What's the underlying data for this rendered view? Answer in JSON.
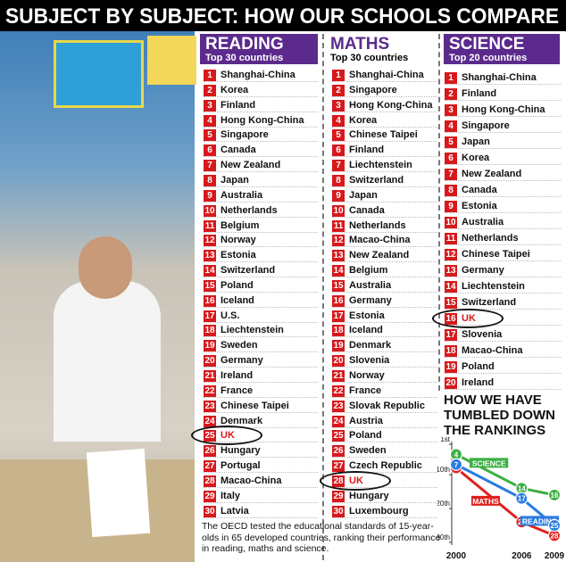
{
  "title": "SUBJECT BY SUBJECT: HOW OUR SCHOOLS COMPARE",
  "columns": [
    {
      "heading": "READING",
      "subheading": "Top 30 countries",
      "rows": [
        {
          "rank": 1,
          "country": "Shanghai-China"
        },
        {
          "rank": 2,
          "country": "Korea"
        },
        {
          "rank": 3,
          "country": "Finland"
        },
        {
          "rank": 4,
          "country": "Hong Kong-China"
        },
        {
          "rank": 5,
          "country": "Singapore"
        },
        {
          "rank": 6,
          "country": "Canada"
        },
        {
          "rank": 7,
          "country": "New Zealand"
        },
        {
          "rank": 8,
          "country": "Japan"
        },
        {
          "rank": 9,
          "country": "Australia"
        },
        {
          "rank": 10,
          "country": "Netherlands"
        },
        {
          "rank": 11,
          "country": "Belgium"
        },
        {
          "rank": 12,
          "country": "Norway"
        },
        {
          "rank": 13,
          "country": "Estonia"
        },
        {
          "rank": 14,
          "country": "Switzerland"
        },
        {
          "rank": 15,
          "country": "Poland"
        },
        {
          "rank": 16,
          "country": "Iceland"
        },
        {
          "rank": 17,
          "country": "U.S."
        },
        {
          "rank": 18,
          "country": "Liechtenstein"
        },
        {
          "rank": 19,
          "country": "Sweden"
        },
        {
          "rank": 20,
          "country": "Germany"
        },
        {
          "rank": 21,
          "country": "Ireland"
        },
        {
          "rank": 22,
          "country": "France"
        },
        {
          "rank": 23,
          "country": "Chinese Taipei"
        },
        {
          "rank": 24,
          "country": "Denmark"
        },
        {
          "rank": 25,
          "country": "UK",
          "highlighted": true
        },
        {
          "rank": 26,
          "country": "Hungary"
        },
        {
          "rank": 27,
          "country": "Portugal"
        },
        {
          "rank": 28,
          "country": "Macao-China"
        },
        {
          "rank": 29,
          "country": "Italy"
        },
        {
          "rank": 30,
          "country": "Latvia"
        }
      ]
    },
    {
      "heading": "MATHS",
      "subheading": "Top 30 countries",
      "rows": [
        {
          "rank": 1,
          "country": "Shanghai-China"
        },
        {
          "rank": 2,
          "country": "Singapore"
        },
        {
          "rank": 3,
          "country": "Hong Kong-China"
        },
        {
          "rank": 4,
          "country": "Korea"
        },
        {
          "rank": 5,
          "country": "Chinese Taipei"
        },
        {
          "rank": 6,
          "country": "Finland"
        },
        {
          "rank": 7,
          "country": "Liechtenstein"
        },
        {
          "rank": 8,
          "country": "Switzerland"
        },
        {
          "rank": 9,
          "country": "Japan"
        },
        {
          "rank": 10,
          "country": "Canada"
        },
        {
          "rank": 11,
          "country": "Netherlands"
        },
        {
          "rank": 12,
          "country": "Macao-China"
        },
        {
          "rank": 13,
          "country": "New Zealand"
        },
        {
          "rank": 14,
          "country": "Belgium"
        },
        {
          "rank": 15,
          "country": "Australia"
        },
        {
          "rank": 16,
          "country": "Germany"
        },
        {
          "rank": 17,
          "country": "Estonia"
        },
        {
          "rank": 18,
          "country": "Iceland"
        },
        {
          "rank": 19,
          "country": "Denmark"
        },
        {
          "rank": 20,
          "country": "Slovenia"
        },
        {
          "rank": 21,
          "country": "Norway"
        },
        {
          "rank": 22,
          "country": "France"
        },
        {
          "rank": 23,
          "country": "Slovak Republic"
        },
        {
          "rank": 24,
          "country": "Austria"
        },
        {
          "rank": 25,
          "country": "Poland"
        },
        {
          "rank": 26,
          "country": "Sweden"
        },
        {
          "rank": 27,
          "country": "Czech Republic"
        },
        {
          "rank": 28,
          "country": "UK",
          "highlighted": true
        },
        {
          "rank": 29,
          "country": "Hungary"
        },
        {
          "rank": 30,
          "country": "Luxembourg"
        }
      ]
    },
    {
      "heading": "SCIENCE",
      "subheading": "Top 20 countries",
      "rows": [
        {
          "rank": 1,
          "country": "Shanghai-China"
        },
        {
          "rank": 2,
          "country": "Finland"
        },
        {
          "rank": 3,
          "country": "Hong Kong-China"
        },
        {
          "rank": 4,
          "country": "Singapore"
        },
        {
          "rank": 5,
          "country": "Japan"
        },
        {
          "rank": 6,
          "country": "Korea"
        },
        {
          "rank": 7,
          "country": "New Zealand"
        },
        {
          "rank": 8,
          "country": "Canada"
        },
        {
          "rank": 9,
          "country": "Estonia"
        },
        {
          "rank": 10,
          "country": "Australia"
        },
        {
          "rank": 11,
          "country": "Netherlands"
        },
        {
          "rank": 12,
          "country": "Chinese Taipei"
        },
        {
          "rank": 13,
          "country": "Germany"
        },
        {
          "rank": 14,
          "country": "Liechtenstein"
        },
        {
          "rank": 15,
          "country": "Switzerland"
        },
        {
          "rank": 16,
          "country": "UK",
          "highlighted": true
        },
        {
          "rank": 17,
          "country": "Slovenia"
        },
        {
          "rank": 18,
          "country": "Macao-China"
        },
        {
          "rank": 19,
          "country": "Poland"
        },
        {
          "rank": 20,
          "country": "Ireland"
        }
      ]
    }
  ],
  "footnote": "The OECD tested the educational standards of 15-year-olds in 65 developed countries, ranking their performance in reading, maths and science.",
  "chart_data": {
    "type": "line",
    "title": "HOW WE HAVE TUMBLED DOWN THE RANKINGS",
    "x": [
      2000,
      2006,
      2009
    ],
    "xlim": [
      2000,
      2009
    ],
    "xticks": [
      2000,
      2006,
      2009
    ],
    "ylim": [
      1,
      30
    ],
    "y_inverted": true,
    "yticks": [
      {
        "value": 1,
        "label": "1st"
      },
      {
        "value": 10,
        "label": "10th"
      },
      {
        "value": 20,
        "label": "20th"
      },
      {
        "value": 30,
        "label": "30th"
      }
    ],
    "series": [
      {
        "name": "SCIENCE",
        "color": "#3cb043",
        "values": [
          4,
          14,
          16
        ]
      },
      {
        "name": "MATHS",
        "color": "#e0201c",
        "values": [
          8,
          24,
          28
        ]
      },
      {
        "name": "READING",
        "color": "#2a7de1",
        "values": [
          7,
          17,
          25
        ]
      }
    ]
  }
}
